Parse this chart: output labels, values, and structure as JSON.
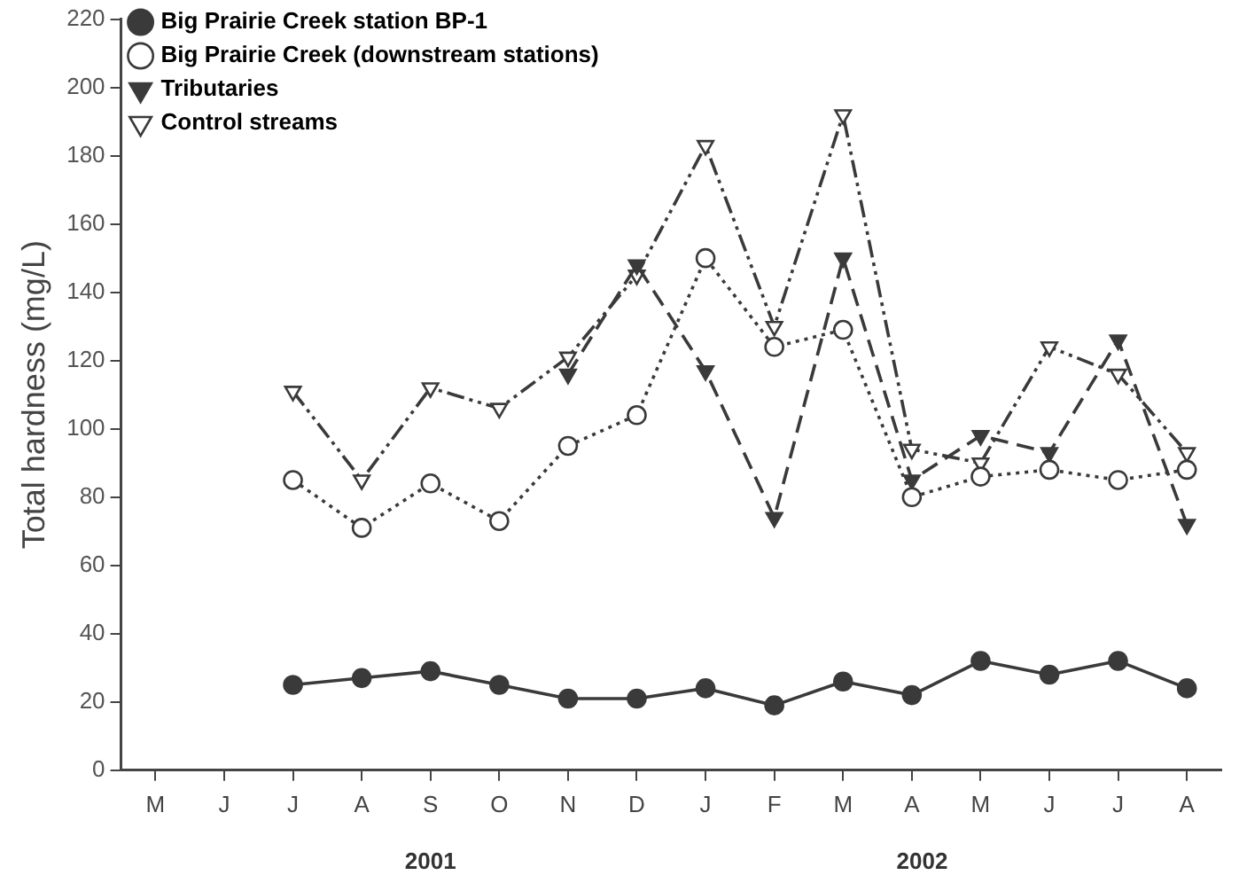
{
  "chart_data": {
    "type": "line",
    "ylabel": "Total hardness (mg/L)",
    "categories": [
      "M",
      "J",
      "J",
      "A",
      "S",
      "O",
      "N",
      "D",
      "J",
      "F",
      "M",
      "A",
      "M",
      "J",
      "J",
      "A"
    ],
    "ylim": [
      0,
      220
    ],
    "yticks": [
      0,
      20,
      40,
      60,
      80,
      100,
      120,
      140,
      160,
      180,
      200,
      220
    ],
    "grid": false,
    "legend": "top left",
    "annotations": [
      "2001",
      "2002"
    ],
    "series": [
      {
        "name": "Big Prairie Creek station BP-1",
        "color": "#3a3a3a",
        "line_style": "solid",
        "marker": "circle",
        "values": [
          null,
          null,
          25,
          27,
          29,
          25,
          21,
          21,
          24,
          19,
          26,
          22,
          32,
          28,
          32,
          24
        ]
      },
      {
        "name": "Big Prairie Creek (downstream stations)",
        "color": "#3a3a3a",
        "line_style": "dotted",
        "marker": "circle_open",
        "values": [
          null,
          null,
          85,
          71,
          84,
          73,
          95,
          104,
          150,
          124,
          129,
          80,
          86,
          88,
          85,
          88
        ]
      },
      {
        "name": "Tributaries",
        "color": "#3a3a3a",
        "line_style": "dashed",
        "marker": "triangle_down",
        "values": [
          null,
          null,
          null,
          null,
          null,
          null,
          116,
          148,
          117,
          74,
          150,
          85,
          98,
          93,
          126,
          72
        ]
      },
      {
        "name": "Control streams",
        "color": "#3a3a3a",
        "line_style": "dashdotdot",
        "marker": "triangle_down_open",
        "values": [
          null,
          null,
          111,
          85,
          112,
          106,
          121,
          145,
          183,
          130,
          192,
          94,
          90,
          124,
          116,
          93
        ]
      }
    ]
  }
}
